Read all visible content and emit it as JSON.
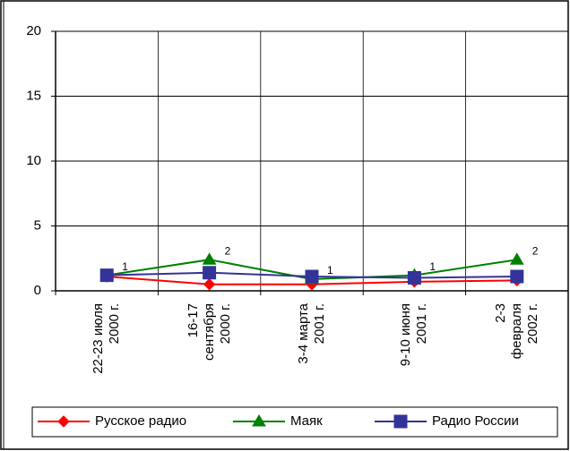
{
  "chart_data": {
    "type": "line",
    "categories": [
      "22-23 июля\n2000 г.",
      "16-17\nсентября\n2000 г.",
      "3-4 марта\n2001 г.",
      "9-10 июня\n2001 г.",
      "2-3\nфевраля\n2002 г."
    ],
    "series": [
      {
        "name": "Русское радио",
        "color": "#ff0000",
        "marker": "diamond",
        "values": [
          1.1,
          0.5,
          0.5,
          0.7,
          0.8
        ]
      },
      {
        "name": "Маяк",
        "color": "#008000",
        "marker": "triangle",
        "values": [
          1.2,
          2.4,
          0.9,
          1.2,
          2.4
        ],
        "value_labels": [
          "1",
          "2",
          "1",
          "1",
          "2"
        ]
      },
      {
        "name": "Радио России",
        "color": "#333399",
        "marker": "square",
        "values": [
          1.2,
          1.4,
          1.1,
          1.0,
          1.1
        ]
      }
    ],
    "ylim": [
      0,
      20
    ],
    "yticks": [
      0,
      5,
      10,
      15,
      20
    ],
    "grid": true,
    "legend": "bottom"
  }
}
